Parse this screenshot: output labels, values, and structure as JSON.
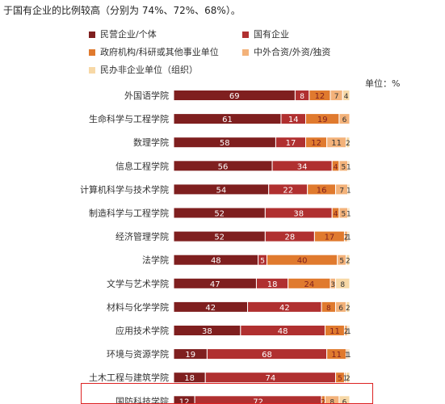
{
  "intro_text": "于国有企业的比例较高（分别为 74%、72%、68%）。",
  "unit_label": "单位：%",
  "colors": {
    "民营企业/个体": "#7f1f1f",
    "国有企业": "#b03030",
    "政府机构/科研或其他事业单位": "#e07a2e",
    "中外合资/外资/独资": "#f3b27a",
    "民办非企业单位（组织）": "#f7d8a6"
  },
  "chart_data": {
    "type": "bar",
    "orientation": "horizontal",
    "stacked": true,
    "legend_position": "top",
    "title": "",
    "xlabel": "",
    "ylabel": "",
    "categories": [
      "外国语学院",
      "生命科学与工程学院",
      "数理学院",
      "信息工程学院",
      "计算机科学与技术学院",
      "制造科学与工程学院",
      "经济管理学院",
      "法学院",
      "文学与艺术学院",
      "材料与化学学院",
      "应用技术学院",
      "环境与资源学院",
      "土木工程与建筑学院",
      "国防科技学院"
    ],
    "series": [
      {
        "name": "民营企业/个体",
        "values": [
          69,
          61,
          58,
          56,
          54,
          52,
          52,
          48,
          47,
          42,
          38,
          19,
          18,
          12
        ]
      },
      {
        "name": "国有企业",
        "values": [
          8,
          14,
          17,
          34,
          22,
          38,
          28,
          5,
          18,
          42,
          48,
          68,
          74,
          72
        ]
      },
      {
        "name": "政府机构/科研或其他事业单位",
        "values": [
          12,
          19,
          12,
          4,
          16,
          4,
          17,
          40,
          24,
          8,
          11,
          11,
          5,
          2
        ]
      },
      {
        "name": "中外合资/外资/独资",
        "values": [
          7,
          6,
          11,
          5,
          7,
          5,
          2,
          5,
          3,
          6,
          2,
          1,
          1,
          8
        ]
      },
      {
        "name": "民办非企业单位（组织）",
        "values": [
          4,
          0,
          2,
          1,
          1,
          1,
          1,
          2,
          8,
          2,
          1,
          1,
          2,
          6
        ]
      }
    ],
    "highlighted_category": "国防科技学院"
  }
}
